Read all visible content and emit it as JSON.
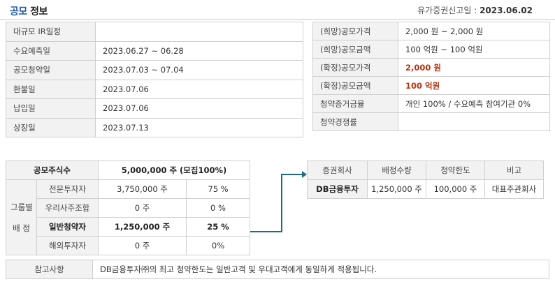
{
  "header": {
    "title_accent": "공모",
    "title_rest": "정보",
    "report_date_label": "유가증권신고일 :",
    "report_date_value": "2023.06.02"
  },
  "schedule": [
    {
      "label": "대규모 IR일정",
      "value": ""
    },
    {
      "label": "수요예측일",
      "value": "2023.06.27 ~ 06.28"
    },
    {
      "label": "공모청약일",
      "value": "2023.07.03 ~ 07.04"
    },
    {
      "label": "환불일",
      "value": "2023.07.06"
    },
    {
      "label": "납입일",
      "value": "2023.07.06"
    },
    {
      "label": "상장일",
      "value": "2023.07.13"
    }
  ],
  "pricing": [
    {
      "label": "(희망)공모가격",
      "value": "2,000 원 ~ 2,000 원"
    },
    {
      "label": "(희망)공모금액",
      "value": "100 억원  ~ 100 억원"
    },
    {
      "label": "(확정)공모가격",
      "value": "2,000 원"
    },
    {
      "label": "(확정)공모금액",
      "value": "100 억원"
    },
    {
      "label": "청약증거금율",
      "value": "개인 100% / 수요예측 참여기관 0%"
    },
    {
      "label": "청약경쟁률",
      "value": ""
    }
  ],
  "shares": {
    "total_label": "공모주식수",
    "total_value": "5,000,000 주 (모집100%)",
    "group_label_line1": "그룹별",
    "group_label_line2": "배 정",
    "rows": [
      {
        "category": "전문투자자",
        "shares": "3,750,000 주",
        "percent": "75 %"
      },
      {
        "category": "우리사주조합",
        "shares": "0 주",
        "percent": "0 %"
      },
      {
        "category": "일반청약자",
        "shares": "1,250,000 주",
        "percent": "25 %"
      },
      {
        "category": "해외투자자",
        "shares": "0 주",
        "percent": "0%"
      }
    ]
  },
  "underwriter": {
    "headers": [
      "증권회사",
      "배정수량",
      "청약한도",
      "비고"
    ],
    "rows": [
      {
        "company": "DB금융투자",
        "allocation": "1,250,000 주",
        "limit": "100,000 주",
        "note": "대표주관회사"
      }
    ]
  },
  "note": {
    "label": "참고사항",
    "text": "DB금융투자㈜의 최고 청약한도는 일반고객 및 우대고객에게 동일하게 적용됩니다."
  },
  "colors": {
    "accent": "#1c5aa6",
    "highlight": "#b8340f",
    "connector": "#1d6f7d"
  }
}
